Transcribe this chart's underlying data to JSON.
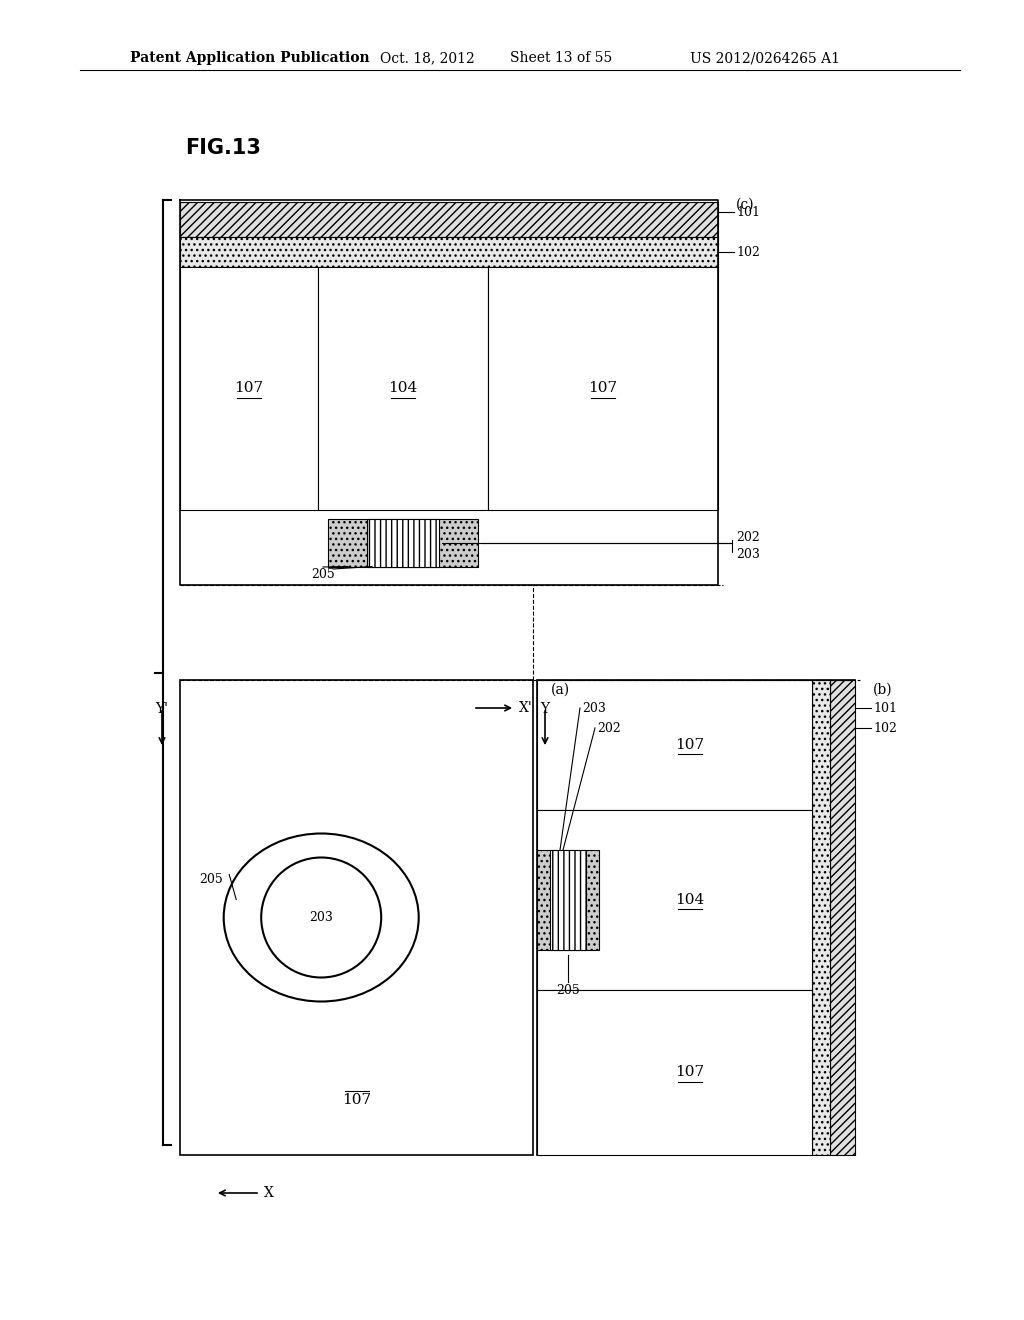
{
  "bg_color": "#ffffff",
  "header_text": "Patent Application Publication",
  "header_date": "Oct. 18, 2012",
  "header_sheet": "Sheet 13 of 55",
  "header_patent": "US 2012/0264265 A1",
  "fig_label": "FIG.13",
  "label_101": "101",
  "label_102": "102",
  "label_104": "104",
  "label_107": "107",
  "label_202": "202",
  "label_203": "203",
  "label_205": "205",
  "label_a": "(a)",
  "label_b": "(b)",
  "label_c": "(c)"
}
